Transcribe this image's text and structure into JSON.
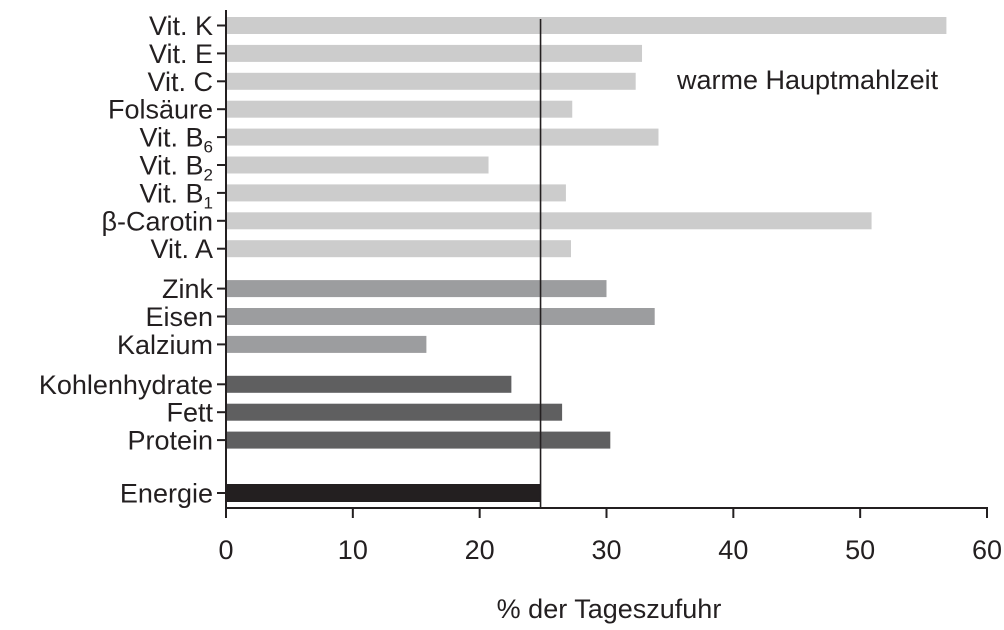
{
  "chart_data": {
    "type": "bar",
    "orientation": "horizontal",
    "annotation": "warme Hauptmahlzeit",
    "xlabel": "% der Tageszufuhr",
    "xlim": [
      0,
      60
    ],
    "xticks": [
      "0",
      "10",
      "20",
      "30",
      "40",
      "50",
      "60"
    ],
    "reference_line_x": 24.8,
    "categories": [
      {
        "label": "Vit. K",
        "base": "Vit. K",
        "sub": "",
        "value": 56.8,
        "group": "vitamins",
        "color": "#cccccc"
      },
      {
        "label": "Vit. E",
        "base": "Vit. E",
        "sub": "",
        "value": 32.8,
        "group": "vitamins",
        "color": "#cccccc"
      },
      {
        "label": "Vit. C",
        "base": "Vit. C",
        "sub": "",
        "value": 32.3,
        "group": "vitamins",
        "color": "#cccccc"
      },
      {
        "label": "Folsäure",
        "base": "Folsäure",
        "sub": "",
        "value": 27.3,
        "group": "vitamins",
        "color": "#cccccc"
      },
      {
        "label": "Vit. B6",
        "base": "Vit. B",
        "sub": "6",
        "value": 34.1,
        "group": "vitamins",
        "color": "#cccccc"
      },
      {
        "label": "Vit. B2",
        "base": "Vit. B",
        "sub": "2",
        "value": 20.7,
        "group": "vitamins",
        "color": "#cccccc"
      },
      {
        "label": "Vit. B1",
        "base": "Vit. B",
        "sub": "1",
        "value": 26.8,
        "group": "vitamins",
        "color": "#cccccc"
      },
      {
        "label": "β-Carotin",
        "base": "β-Carotin",
        "sub": "",
        "value": 50.9,
        "group": "vitamins",
        "color": "#cccccc"
      },
      {
        "label": "Vit. A",
        "base": "Vit. A",
        "sub": "",
        "value": 27.2,
        "group": "vitamins",
        "color": "#cccccc"
      },
      {
        "label": "Zink",
        "base": "Zink",
        "sub": "",
        "value": 30.0,
        "group": "minerals",
        "color": "#9c9d9f"
      },
      {
        "label": "Eisen",
        "base": "Eisen",
        "sub": "",
        "value": 33.8,
        "group": "minerals",
        "color": "#9c9d9f"
      },
      {
        "label": "Kalzium",
        "base": "Kalzium",
        "sub": "",
        "value": 15.8,
        "group": "minerals",
        "color": "#9c9d9f"
      },
      {
        "label": "Kohlenhydrate",
        "base": "Kohlenhydrate",
        "sub": "",
        "value": 22.5,
        "group": "macronutrients",
        "color": "#5f5f60"
      },
      {
        "label": "Fett",
        "base": "Fett",
        "sub": "",
        "value": 26.5,
        "group": "macronutrients",
        "color": "#5f5f60"
      },
      {
        "label": "Protein",
        "base": "Protein",
        "sub": "",
        "value": 30.3,
        "group": "macronutrients",
        "color": "#5f5f60"
      },
      {
        "label": "Energie",
        "base": "Energie",
        "sub": "",
        "value": 24.8,
        "group": "energy",
        "color": "#231f20"
      }
    ],
    "grid": false,
    "legend": "none"
  }
}
